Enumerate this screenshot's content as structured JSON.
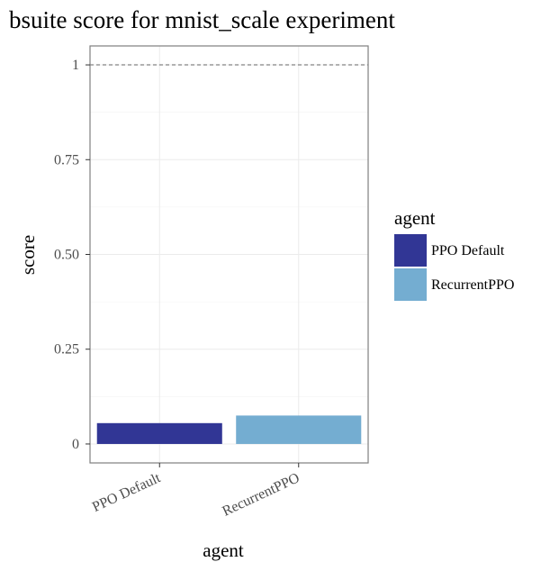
{
  "chart_data": {
    "type": "bar",
    "title": "bsuite score for mnist_scale experiment",
    "xlabel": "agent",
    "ylabel": "score",
    "categories": [
      "PPO Default",
      "RecurrentPPO"
    ],
    "values": [
      0.055,
      0.075
    ],
    "colors": [
      "#313695",
      "#74add1"
    ],
    "ylim": [
      -0.05,
      1.05
    ],
    "yticks": [
      0,
      0.25,
      0.5,
      0.75,
      1
    ],
    "ytick_labels": [
      "0",
      "0.25",
      "0.50",
      "0.75",
      "1"
    ],
    "reference_line": {
      "y": 1,
      "style": "dashed",
      "color": "#666666"
    },
    "grid": true,
    "legend": {
      "title": "agent",
      "position": "right",
      "entries": [
        "PPO Default",
        "RecurrentPPO"
      ]
    }
  }
}
